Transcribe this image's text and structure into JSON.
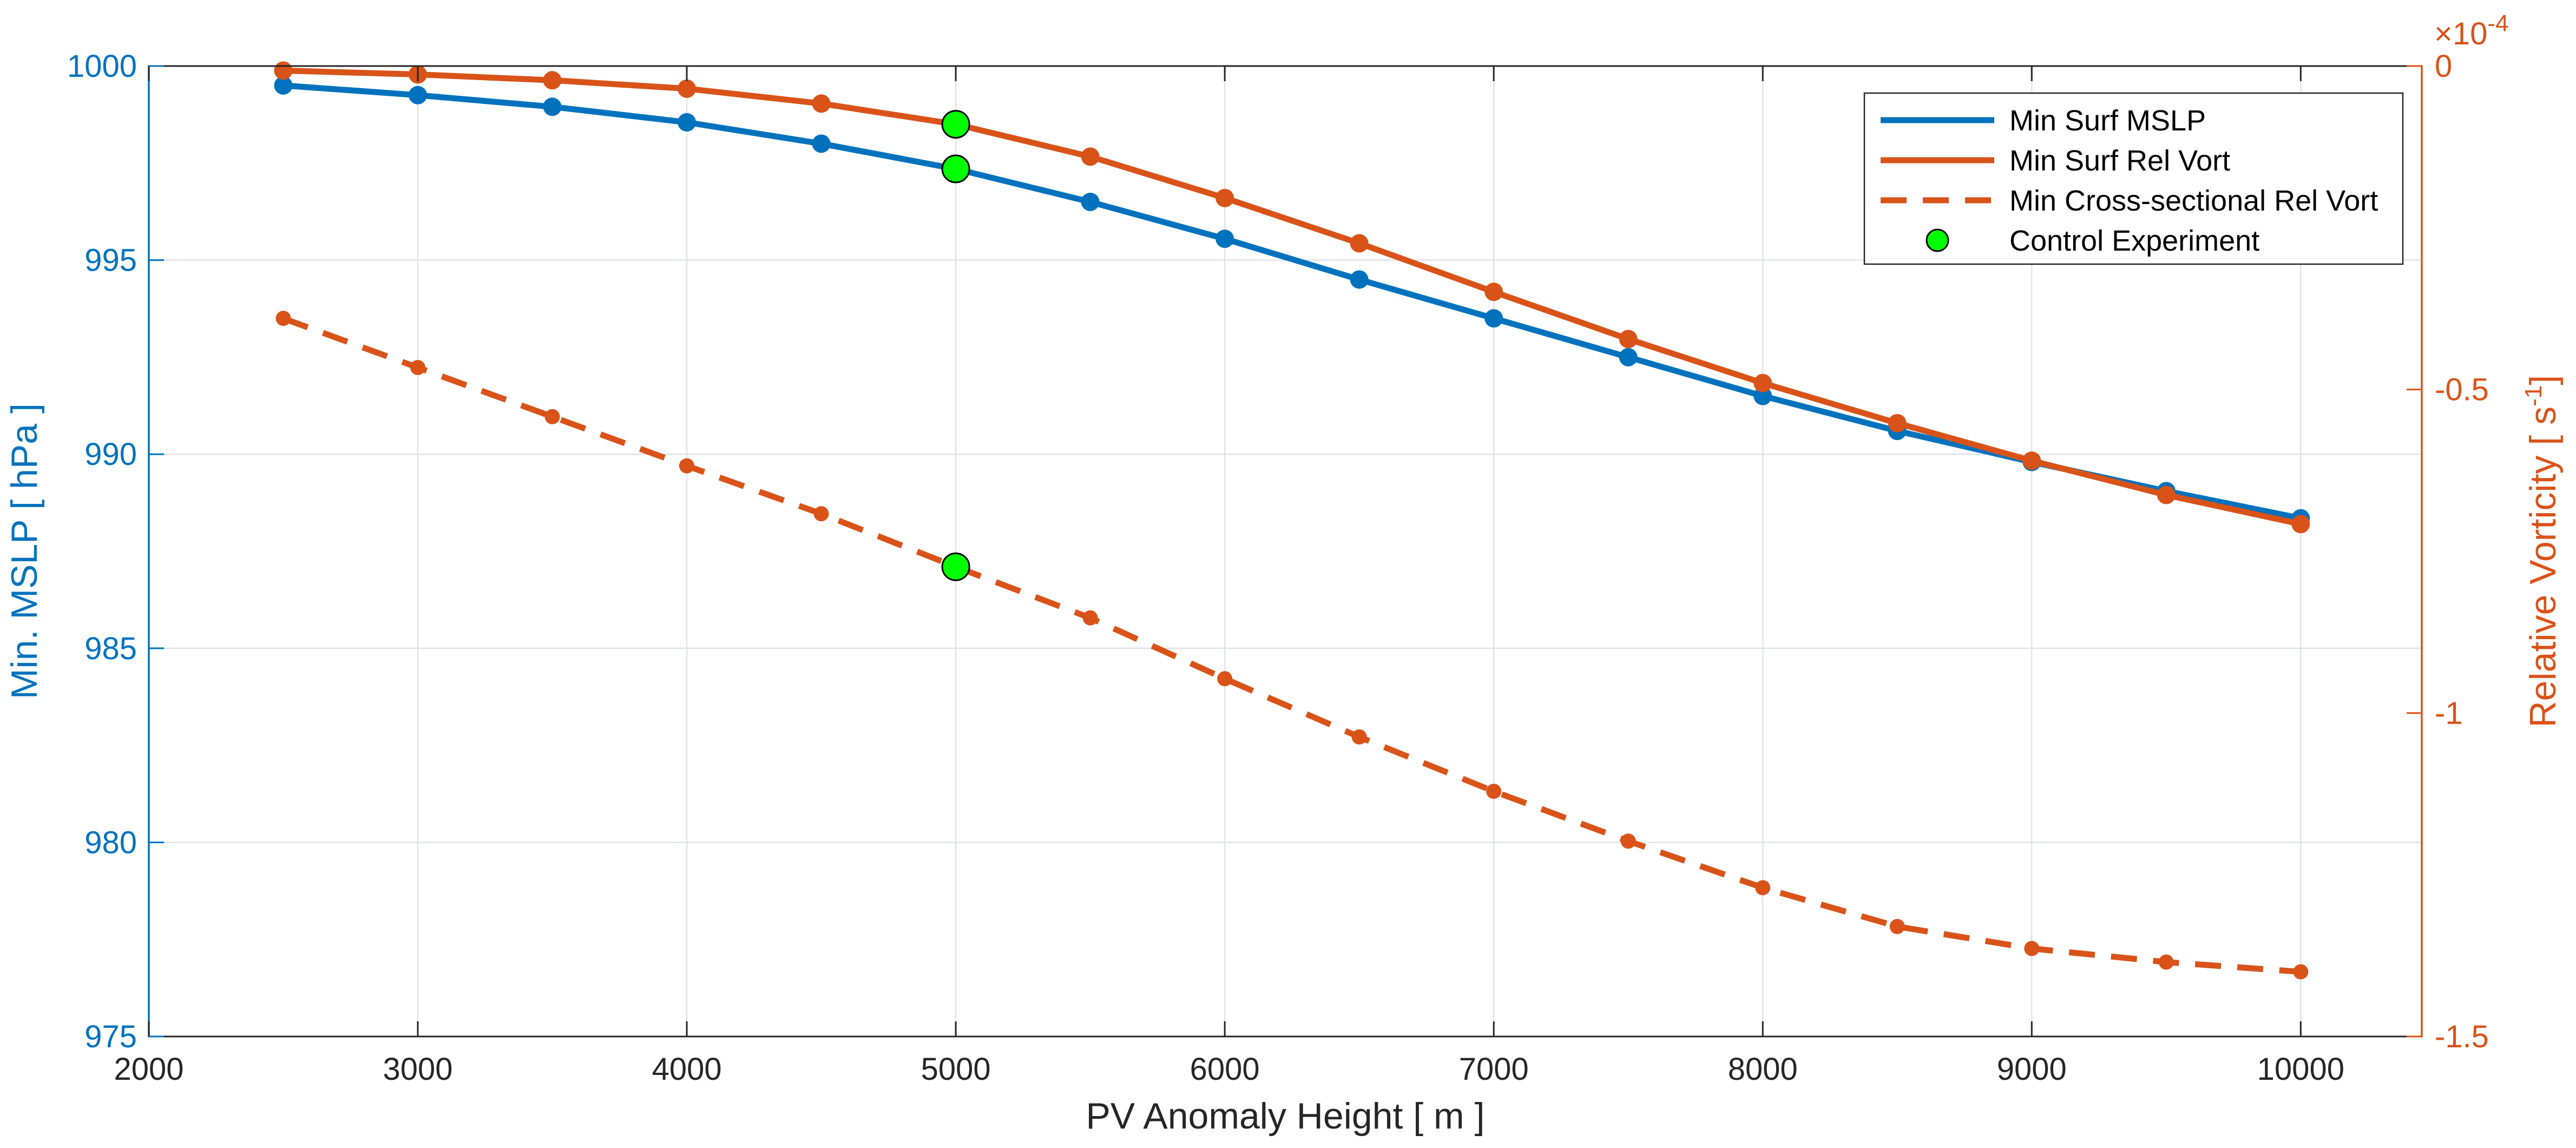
{
  "chart_data": {
    "type": "line",
    "title": "",
    "xlabel": "PV Anomaly Height [ m ]",
    "ylabel_left": "Min. MSLP [ hPa ]",
    "ylabel_right_prefix": "Relative Vorticity [ s",
    "ylabel_right_sup": "-1",
    "ylabel_right_suffix": "]",
    "xlim": [
      2000,
      10450
    ],
    "ylim_left": [
      975,
      1000
    ],
    "ylim_right": [
      -1.5,
      0
    ],
    "right_axis_multiplier_base": "×10",
    "right_axis_multiplier_exp": "-4",
    "x_ticks": [
      2000,
      3000,
      4000,
      5000,
      6000,
      7000,
      8000,
      9000,
      10000
    ],
    "y_ticks_left": [
      975,
      980,
      985,
      990,
      995,
      1000
    ],
    "y_ticks_right": [
      -1.5,
      -1,
      -0.5,
      0
    ],
    "y_tick_labels_right": [
      "-1.5",
      "-1",
      "-0.5",
      "0"
    ],
    "grid": true,
    "legend_position": "top-right",
    "x": [
      2500,
      3000,
      3500,
      4000,
      4500,
      5000,
      5500,
      6000,
      6500,
      7000,
      7500,
      8000,
      8500,
      9000,
      9500,
      10000
    ],
    "series": [
      {
        "name": "Min Surf MSLP",
        "axis": "left",
        "style": "solid",
        "color": "#0072BD",
        "values": [
          999.5,
          999.25,
          998.95,
          998.55,
          998.0,
          997.35,
          996.5,
          995.55,
          994.5,
          993.5,
          992.5,
          991.5,
          990.6,
          989.8,
          989.05,
          988.35
        ]
      },
      {
        "name": "Min Surf Rel Vort",
        "axis": "right",
        "style": "solid",
        "color": "#D95319",
        "values": [
          -0.007,
          -0.013,
          -0.022,
          -0.035,
          -0.058,
          -0.09,
          -0.14,
          -0.204,
          -0.274,
          -0.349,
          -0.422,
          -0.49,
          -0.552,
          -0.61,
          -0.663,
          -0.708
        ]
      },
      {
        "name": "Min Cross-sectional Rel Vort",
        "axis": "right",
        "style": "dashed",
        "color": "#D95319",
        "values": [
          -0.39,
          -0.466,
          -0.542,
          -0.618,
          -0.692,
          -0.774,
          -0.853,
          -0.947,
          -1.037,
          -1.121,
          -1.198,
          -1.27,
          -1.33,
          -1.364,
          -1.385,
          -1.4
        ]
      },
      {
        "name": "Control Experiment",
        "style": "marker",
        "color": "#00FF00",
        "points": [
          {
            "x": 5000,
            "axis": "right",
            "value": -0.09
          },
          {
            "x": 5000,
            "axis": "left",
            "value": 997.35
          },
          {
            "x": 5000,
            "axis": "right",
            "value": -0.774
          }
        ]
      }
    ]
  }
}
